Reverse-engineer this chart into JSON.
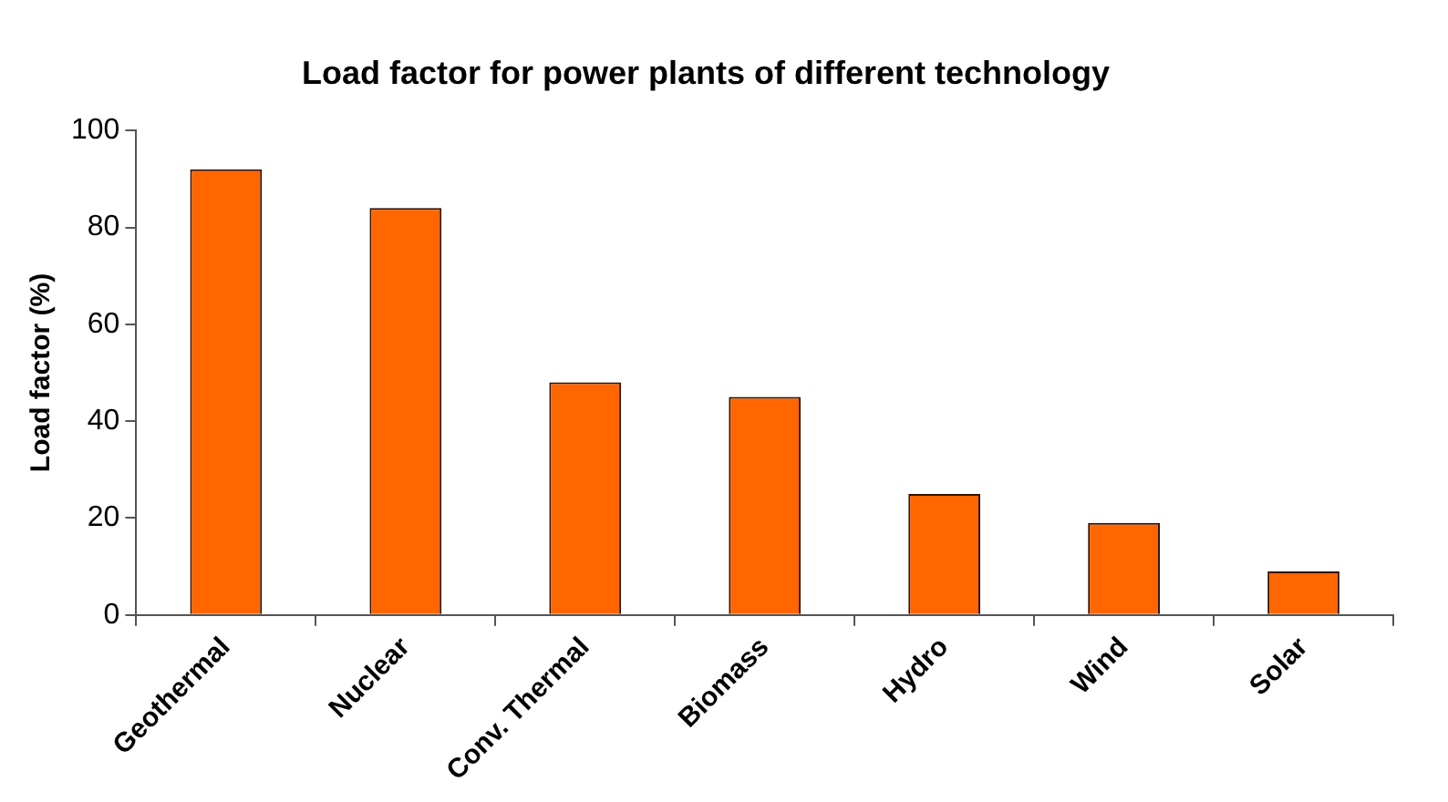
{
  "chart_data": {
    "type": "bar",
    "title": "Load factor for power plants of different technology",
    "ylabel": "Load factor (%)",
    "categories": [
      "Geothermal",
      "Nuclear",
      "Conv. Thermal",
      "Biomass",
      "Hydro",
      "Wind",
      "Solar"
    ],
    "values": [
      92,
      84,
      48,
      45,
      25,
      19,
      9
    ],
    "color": "#ff6600",
    "ylim": [
      0,
      100
    ],
    "yticks": [
      0,
      20,
      40,
      60,
      80,
      100
    ],
    "grid": false,
    "legend": false
  }
}
